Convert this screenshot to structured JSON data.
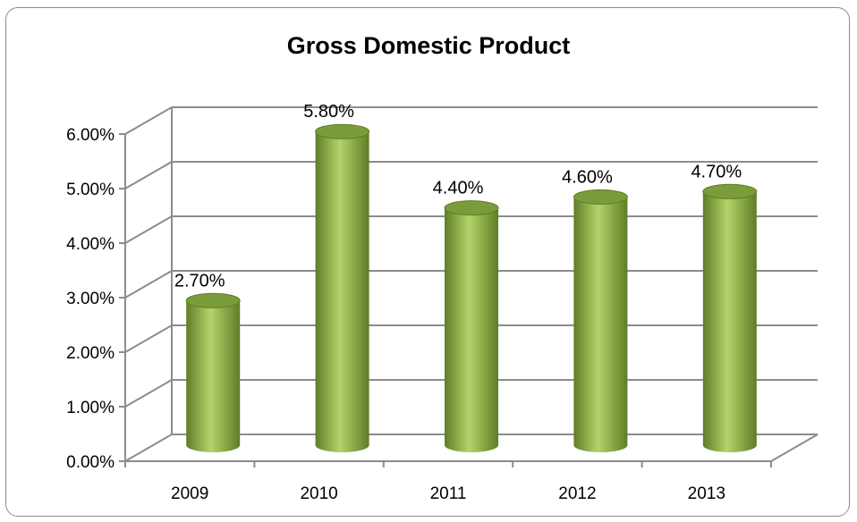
{
  "chart_data": {
    "type": "bar",
    "title": "Gross Domestic Product",
    "categories": [
      "2009",
      "2010",
      "2011",
      "2012",
      "2013"
    ],
    "values": [
      0.027,
      0.058,
      0.044,
      0.046,
      0.047
    ],
    "data_labels": [
      "2.70%",
      "5.80%",
      "4.40%",
      "4.60%",
      "4.70%"
    ],
    "yticks": [
      0,
      0.01,
      0.02,
      0.03,
      0.04,
      0.05,
      0.06
    ],
    "ytick_labels": [
      "0.00%",
      "1.00%",
      "2.00%",
      "3.00%",
      "4.00%",
      "5.00%",
      "6.00%"
    ],
    "ylim": [
      0,
      0.06
    ],
    "grid": true,
    "legend": "none",
    "bar_shape": "cylinder",
    "colors": {
      "bar": "#8db04a",
      "bar_dark": "#5f7d26",
      "bar_light": "#b5d36a",
      "bar_top": "#7a9c3a",
      "grid": "#8c8c8c"
    }
  }
}
